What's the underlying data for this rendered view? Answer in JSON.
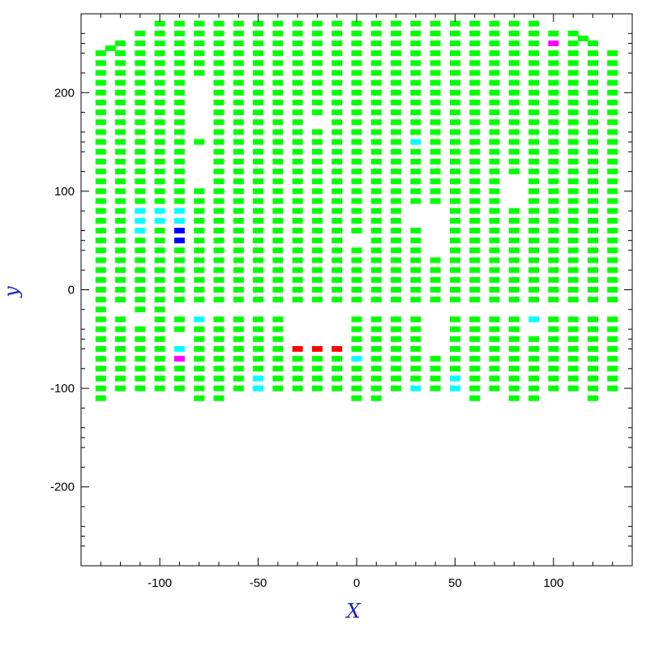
{
  "chart_data": {
    "type": "scatter",
    "marker": "rect",
    "xlabel": "X",
    "ylabel": "y",
    "xlim": [
      -140,
      140
    ],
    "ylim": [
      -280,
      280
    ],
    "x_ticks": [
      -100,
      -50,
      0,
      50,
      100
    ],
    "y_ticks": [
      -200,
      -100,
      0,
      100,
      200
    ],
    "x_tick_labels": [
      "-100",
      "-50",
      "0",
      "50",
      "100"
    ],
    "y_tick_labels": [
      "-200",
      "-100",
      "0",
      "100",
      "200"
    ],
    "grid": false,
    "legend": "none",
    "colors": {
      "axes": "#000000",
      "axis_label": "#2020c0",
      "green": "#00ff00",
      "cyan": "#00ffff",
      "blue": "#0000ff",
      "red": "#ff0000",
      "magenta": "#ff00ff"
    },
    "columns": [
      {
        "x": -130,
        "y_min": -110,
        "y_max": 240,
        "missing": []
      },
      {
        "x": -125,
        "y_min": 245,
        "y_max": 245,
        "missing": []
      },
      {
        "x": -120,
        "y_min": -100,
        "y_max": 250,
        "missing": [
          -20
        ]
      },
      {
        "x": -110,
        "y_min": -100,
        "y_max": 260,
        "missing": [
          -30
        ]
      },
      {
        "x": -100,
        "y_min": -100,
        "y_max": 270,
        "missing": []
      },
      {
        "x": -90,
        "y_min": -100,
        "y_max": 270,
        "missing": [
          -20,
          -50
        ]
      },
      {
        "x": -80,
        "y_min": -110,
        "y_max": 270,
        "missing": [
          -20,
          110,
          120,
          130,
          140,
          160,
          170,
          180,
          190,
          200,
          210
        ]
      },
      {
        "x": -70,
        "y_min": -110,
        "y_max": 270,
        "missing": [
          -20
        ]
      },
      {
        "x": -60,
        "y_min": -100,
        "y_max": 270,
        "missing": [
          -20
        ]
      },
      {
        "x": -50,
        "y_min": -100,
        "y_max": 270,
        "missing": [
          -20
        ]
      },
      {
        "x": -40,
        "y_min": -100,
        "y_max": 270,
        "missing": [
          -20
        ]
      },
      {
        "x": -30,
        "y_min": -100,
        "y_max": 270,
        "missing": [
          -20,
          -30,
          -40,
          -50
        ]
      },
      {
        "x": -20,
        "y_min": -100,
        "y_max": 270,
        "missing": [
          -20,
          -30,
          -40,
          -50,
          170
        ]
      },
      {
        "x": -10,
        "y_min": -100,
        "y_max": 270,
        "missing": [
          -20,
          -30,
          -40,
          -50
        ]
      },
      {
        "x": 0,
        "y_min": -110,
        "y_max": 270,
        "missing": [
          -20,
          50
        ]
      },
      {
        "x": 10,
        "y_min": -110,
        "y_max": 270,
        "missing": [
          -20
        ]
      },
      {
        "x": 20,
        "y_min": -100,
        "y_max": 270,
        "missing": [
          -20
        ]
      },
      {
        "x": 30,
        "y_min": -100,
        "y_max": 270,
        "missing": [
          -20,
          70,
          80
        ]
      },
      {
        "x": 40,
        "y_min": -100,
        "y_max": 270,
        "missing": [
          -20,
          -30,
          -40,
          -50,
          -60,
          40,
          50,
          60,
          70,
          80
        ]
      },
      {
        "x": 50,
        "y_min": -100,
        "y_max": 270,
        "missing": [
          -20
        ]
      },
      {
        "x": 60,
        "y_min": -110,
        "y_max": 270,
        "missing": [
          -20
        ]
      },
      {
        "x": 70,
        "y_min": -100,
        "y_max": 270,
        "missing": [
          -20
        ]
      },
      {
        "x": 80,
        "y_min": -110,
        "y_max": 270,
        "missing": [
          -20,
          90,
          100,
          110
        ]
      },
      {
        "x": 90,
        "y_min": -110,
        "y_max": 270,
        "missing": [
          -20,
          -40
        ]
      },
      {
        "x": 100,
        "y_min": -100,
        "y_max": 260,
        "missing": [
          -20
        ]
      },
      {
        "x": 110,
        "y_min": -100,
        "y_max": 260,
        "missing": [
          -20
        ]
      },
      {
        "x": 115,
        "y_min": 255,
        "y_max": 255,
        "missing": []
      },
      {
        "x": 120,
        "y_min": -110,
        "y_max": 250,
        "missing": [
          -20
        ]
      },
      {
        "x": 130,
        "y_min": -100,
        "y_max": 240,
        "missing": [
          -20
        ]
      }
    ],
    "highlighted": [
      {
        "x": -110,
        "y": 80,
        "color": "cyan"
      },
      {
        "x": -110,
        "y": 70,
        "color": "cyan"
      },
      {
        "x": -110,
        "y": 60,
        "color": "cyan"
      },
      {
        "x": -100,
        "y": 80,
        "color": "cyan"
      },
      {
        "x": -100,
        "y": 70,
        "color": "cyan"
      },
      {
        "x": -90,
        "y": 80,
        "color": "cyan"
      },
      {
        "x": -90,
        "y": 70,
        "color": "cyan"
      },
      {
        "x": -90,
        "y": 60,
        "color": "blue"
      },
      {
        "x": -90,
        "y": 50,
        "color": "blue"
      },
      {
        "x": -80,
        "y": -30,
        "color": "cyan"
      },
      {
        "x": -90,
        "y": -60,
        "color": "cyan"
      },
      {
        "x": -90,
        "y": -70,
        "color": "magenta"
      },
      {
        "x": -50,
        "y": -90,
        "color": "cyan"
      },
      {
        "x": -50,
        "y": -100,
        "color": "cyan"
      },
      {
        "x": -30,
        "y": -60,
        "color": "red"
      },
      {
        "x": -20,
        "y": -60,
        "color": "red"
      },
      {
        "x": -10,
        "y": -60,
        "color": "red"
      },
      {
        "x": 0,
        "y": -70,
        "color": "cyan"
      },
      {
        "x": 30,
        "y": 150,
        "color": "cyan"
      },
      {
        "x": 30,
        "y": -100,
        "color": "cyan"
      },
      {
        "x": 50,
        "y": -90,
        "color": "cyan"
      },
      {
        "x": 50,
        "y": -100,
        "color": "cyan"
      },
      {
        "x": 90,
        "y": -30,
        "color": "cyan"
      },
      {
        "x": 100,
        "y": 250,
        "color": "magenta"
      }
    ]
  }
}
